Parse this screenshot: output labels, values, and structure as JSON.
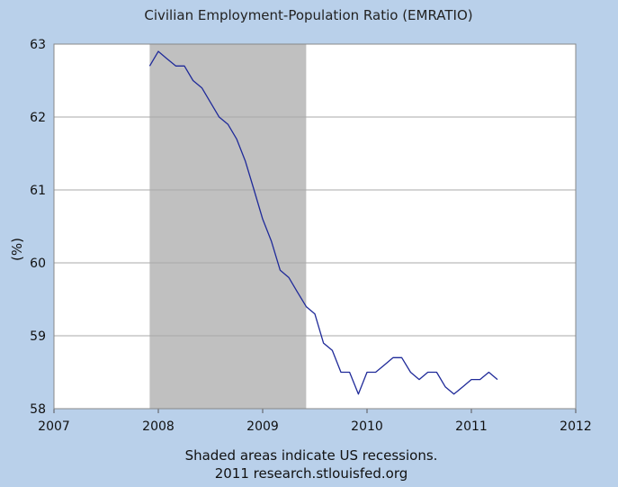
{
  "chart_data": {
    "type": "line",
    "title": "Civilian Employment-Population Ratio (EMRATIO)",
    "ylabel": "(%)",
    "xlabel": "",
    "xlim": [
      2007,
      2012
    ],
    "ylim": [
      58,
      63
    ],
    "x_ticks": [
      "2007",
      "2008",
      "2009",
      "2010",
      "2011",
      "2012"
    ],
    "y_ticks": [
      "63",
      "62",
      "61",
      "60",
      "59",
      "58"
    ],
    "grid": true,
    "recessions": [
      {
        "start": 2007.917,
        "end": 2009.417
      }
    ],
    "series": [
      {
        "line_color": "#1f2a99",
        "x": [
          2007.917,
          2008.0,
          2008.083,
          2008.167,
          2008.25,
          2008.333,
          2008.417,
          2008.5,
          2008.583,
          2008.667,
          2008.75,
          2008.833,
          2008.917,
          2009.0,
          2009.083,
          2009.167,
          2009.25,
          2009.333,
          2009.417,
          2009.5,
          2009.583,
          2009.667,
          2009.75,
          2009.833,
          2009.917,
          2010.0,
          2010.083,
          2010.167,
          2010.25,
          2010.333,
          2010.417,
          2010.5,
          2010.583,
          2010.667,
          2010.75,
          2010.833,
          2010.917,
          2011.0,
          2011.083,
          2011.167,
          2011.25
        ],
        "values": [
          62.7,
          62.9,
          62.8,
          62.7,
          62.7,
          62.5,
          62.4,
          62.2,
          62.0,
          61.9,
          61.7,
          61.4,
          61.0,
          60.6,
          60.3,
          59.9,
          59.8,
          59.6,
          59.4,
          59.3,
          58.9,
          58.8,
          58.5,
          58.5,
          58.2,
          58.5,
          58.5,
          58.6,
          58.7,
          58.7,
          58.5,
          58.4,
          58.5,
          58.5,
          58.3,
          58.2,
          58.3,
          58.4,
          58.4,
          58.5,
          58.4
        ]
      }
    ]
  },
  "notes": {
    "line1": "Shaded areas indicate US recessions.",
    "line2": "2011 research.stlouisfed.org"
  },
  "colors": {
    "background": "#b9d0ea",
    "plot_background": "#ffffff",
    "recession_shade": "#c0c0c0",
    "grid": "#a9a9a9",
    "line": "#1f2a99"
  }
}
